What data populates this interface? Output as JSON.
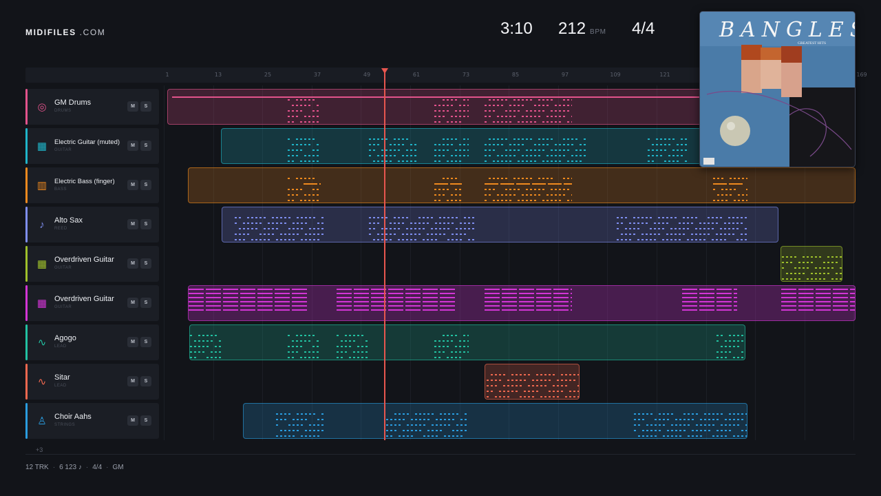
{
  "brand": {
    "name": "MIDIFILES",
    "domain": ".COM"
  },
  "transport": {
    "time": "3:10",
    "tempo": "212",
    "tempo_unit": "BPM",
    "time_signature": "4/4"
  },
  "ruler": {
    "ticks": [
      "1",
      "13",
      "25",
      "37",
      "49",
      "61",
      "73",
      "85",
      "97",
      "109",
      "121",
      "169"
    ]
  },
  "playhead": {
    "bar": 49
  },
  "album_cover": {
    "artist": "BANGLES",
    "title": "GREATEST HITS"
  },
  "tracks": [
    {
      "name": "GM Drums",
      "category": "DRUMS",
      "color": "#e3538c",
      "icon": "drum-icon",
      "mute": "M",
      "solo": "S"
    },
    {
      "name": "Electric Guitar (muted)",
      "category": "GUITAR",
      "color": "#1fb5c9",
      "icon": "guitar-icon",
      "mute": "M",
      "solo": "S"
    },
    {
      "name": "Electric Bass (finger)",
      "category": "BASS",
      "color": "#f08a1e",
      "icon": "bass-icon",
      "mute": "M",
      "solo": "S"
    },
    {
      "name": "Alto Sax",
      "category": "REED",
      "color": "#7f8ef0",
      "icon": "sax-icon",
      "mute": "M",
      "solo": "S"
    },
    {
      "name": "Overdriven Guitar",
      "category": "GUITAR",
      "color": "#9fc12b",
      "icon": "guitar-icon",
      "mute": "M",
      "solo": "S"
    },
    {
      "name": "Overdriven Guitar",
      "category": "GUITAR",
      "color": "#d335d6",
      "icon": "guitar-icon",
      "mute": "M",
      "solo": "S"
    },
    {
      "name": "Agogo",
      "category": "LEAD",
      "color": "#22c2a2",
      "icon": "wave-icon",
      "mute": "M",
      "solo": "S"
    },
    {
      "name": "Sitar",
      "category": "LEAD",
      "color": "#f0684f",
      "icon": "wave-icon",
      "mute": "M",
      "solo": "S"
    },
    {
      "name": "Choir Aahs",
      "category": "STRINGS",
      "color": "#2a9de0",
      "icon": "choir-icon",
      "mute": "M",
      "solo": "S"
    }
  ],
  "more_tracks": "+3",
  "footer": {
    "tracks": "12 TRK",
    "notes": "6 123 ♪",
    "signature": "4/4",
    "standard": "GM"
  }
}
